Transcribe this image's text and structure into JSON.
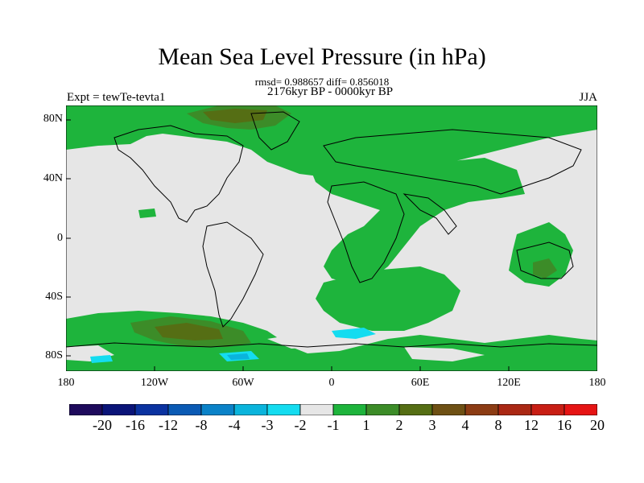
{
  "title": "Mean Sea Level Pressure (in hPa)",
  "stats": "rmsd= 0.988657 diff= 0.856018",
  "period": "2176kyr BP - 0000kyr BP",
  "experiment": "Expt = tewTe-tevta1",
  "season": "JJA",
  "lat_labels": [
    "80N",
    "40N",
    "0",
    "40S",
    "80S"
  ],
  "lon_labels": [
    "180",
    "120W",
    "60W",
    "0",
    "60E",
    "120E",
    "180"
  ],
  "colorbar": {
    "colors": [
      "#1e0a5c",
      "#0a1478",
      "#0a32a0",
      "#0a5ab4",
      "#0a82c8",
      "#0ab4dc",
      "#14dcf0",
      "#e6e6e6",
      "#1eb43c",
      "#3c8c28",
      "#556e14",
      "#6e5014",
      "#8c3c14",
      "#aa2814",
      "#c81e14",
      "#e61414"
    ],
    "labels": [
      "-20",
      "-16",
      "-12",
      "-8",
      "-4",
      "-3",
      "-2",
      "-1",
      "1",
      "2",
      "3",
      "4",
      "8",
      "12",
      "16",
      "20"
    ]
  },
  "map_colors": {
    "neutral": "#e6e6e6",
    "green": "#1eb43c",
    "olive": "#3c8c28",
    "brown": "#556e14",
    "cyan": "#14dcf0",
    "blue": "#0ab4dc"
  }
}
